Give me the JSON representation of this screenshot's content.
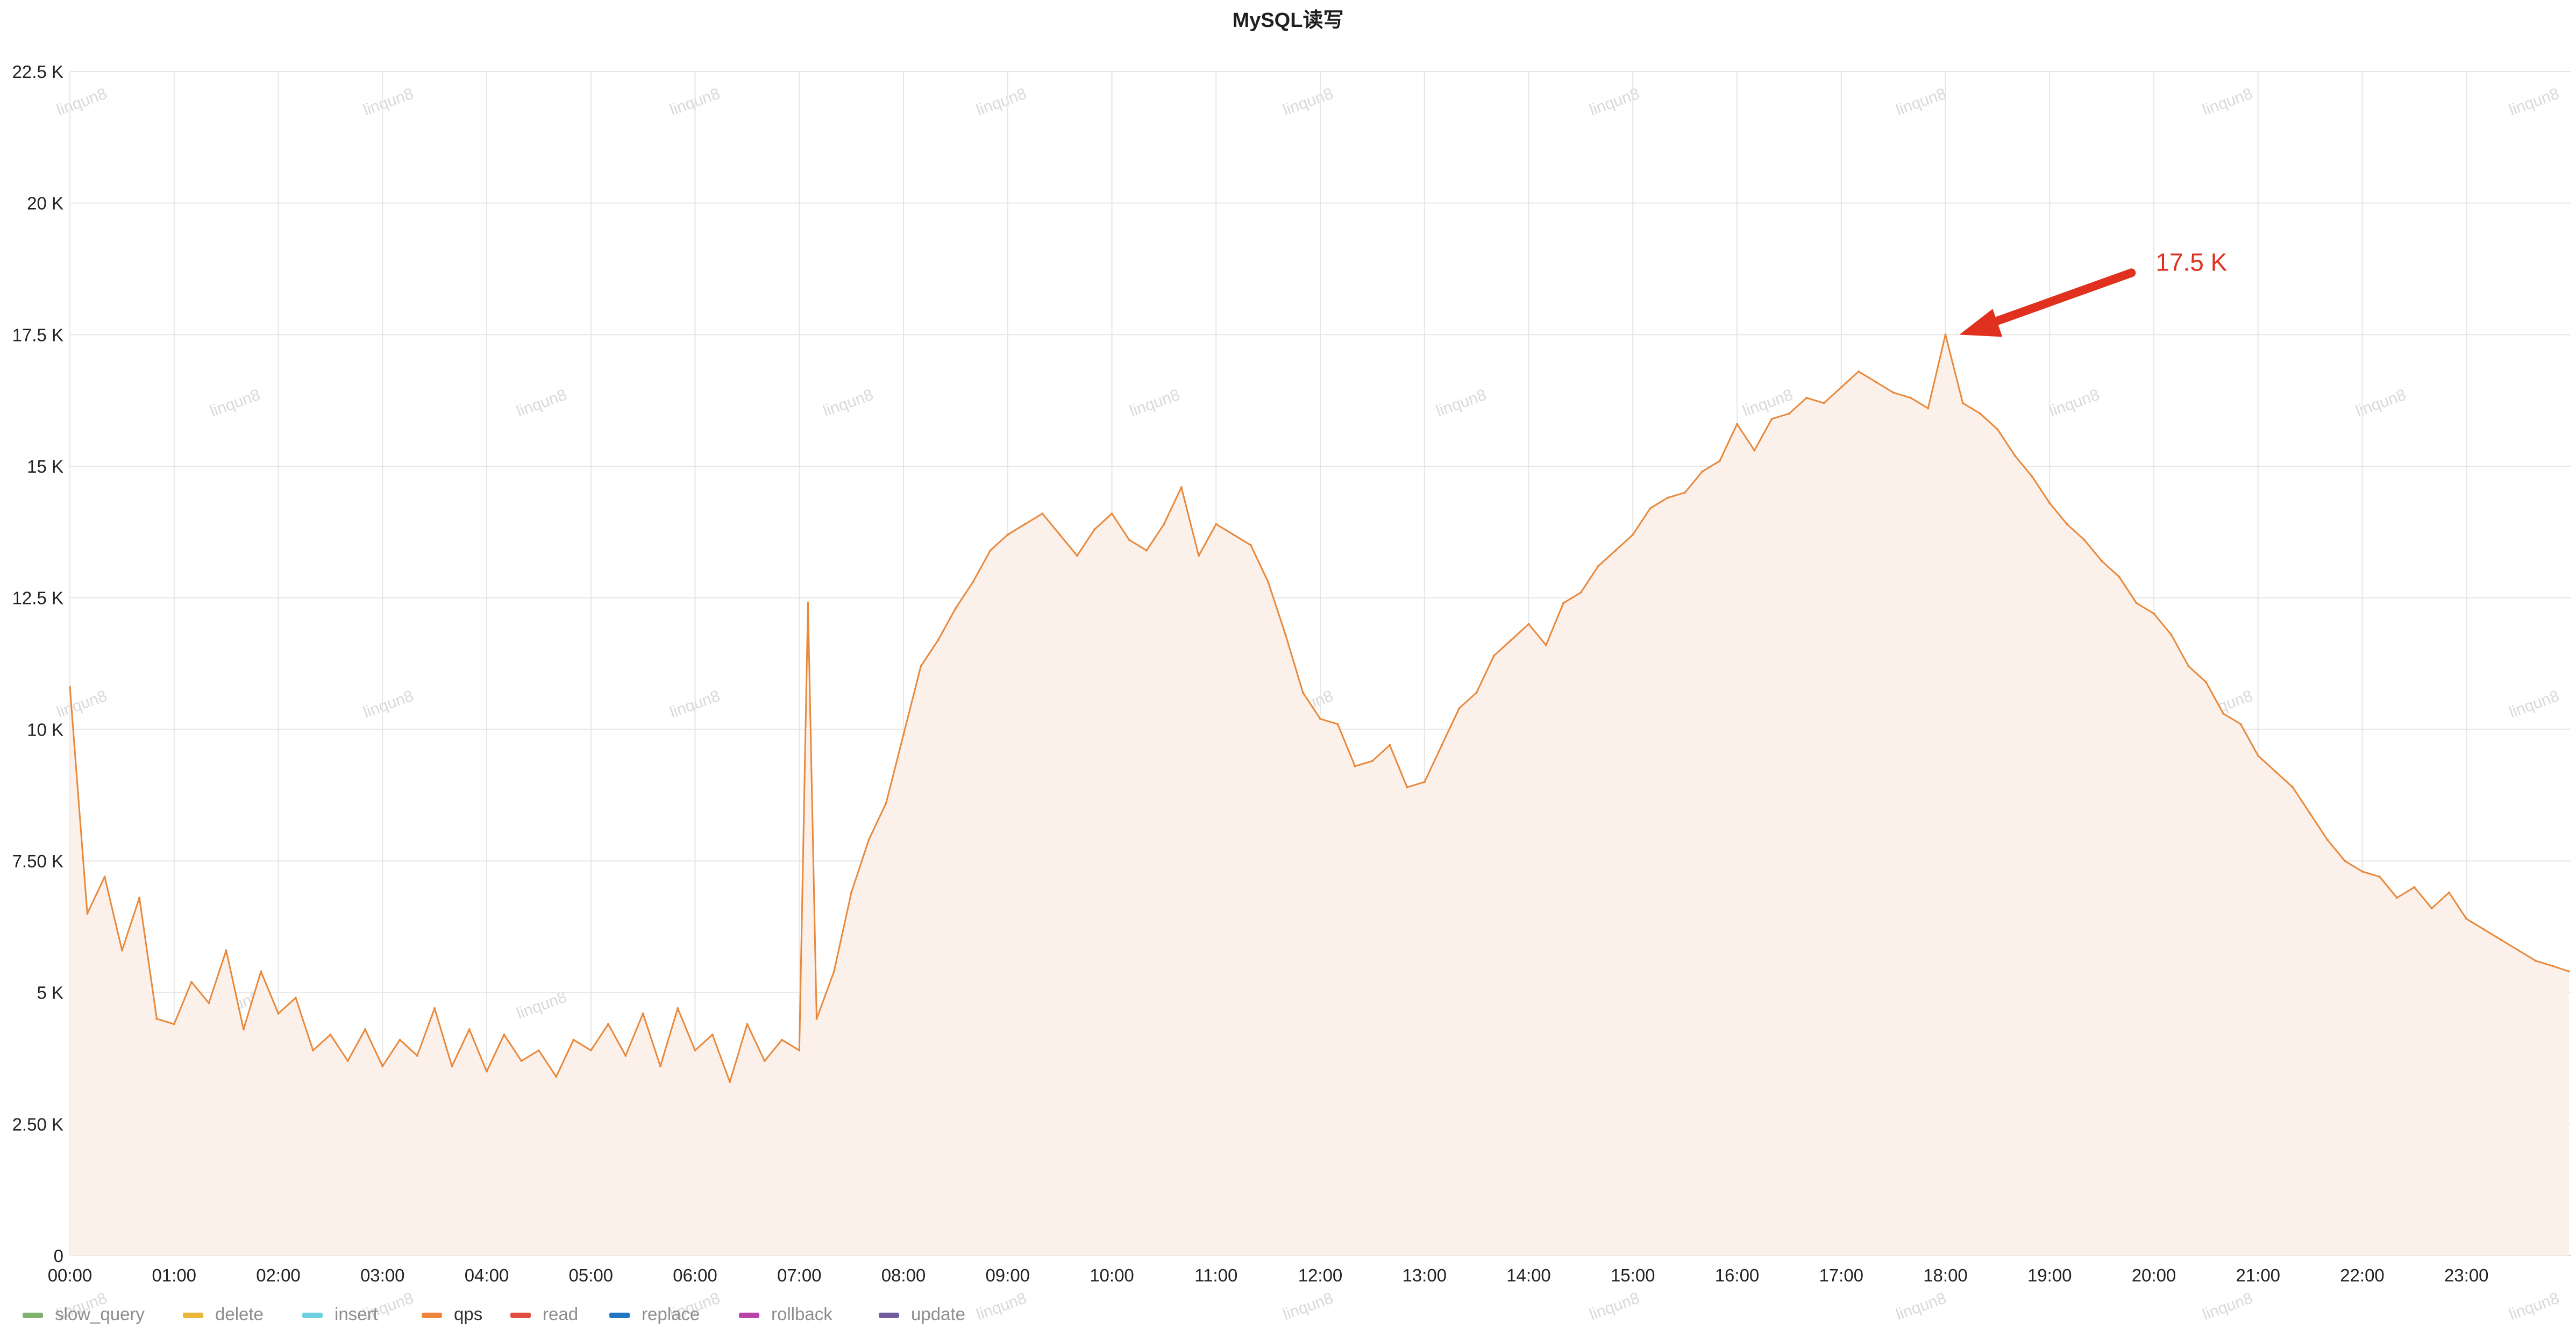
{
  "window": {
    "title": "MySQL读写"
  },
  "colors": {
    "series_line": "#e8893c",
    "series_fill": "#fbf0ea",
    "grid": "#e6e6e6",
    "annotation": "#e0301e"
  },
  "watermark": "linqun8",
  "annotation": {
    "label": "17.5 K",
    "at_time": "18:08",
    "at_value": 17500
  },
  "chart_data": {
    "type": "area",
    "title": "MySQL读写",
    "xlabel": "",
    "ylabel": "",
    "x_ticks": [
      "00:00",
      "01:00",
      "02:00",
      "03:00",
      "04:00",
      "05:00",
      "06:00",
      "07:00",
      "08:00",
      "09:00",
      "10:00",
      "11:00",
      "12:00",
      "13:00",
      "14:00",
      "15:00",
      "16:00",
      "17:00",
      "18:00",
      "19:00",
      "20:00",
      "21:00",
      "22:00",
      "23:00"
    ],
    "y_ticks": [
      "0",
      "2.50 K",
      "5 K",
      "7.50 K",
      "10 K",
      "12.5 K",
      "15 K",
      "17.5 K",
      "20 K",
      "22.5 K"
    ],
    "y_tick_values": [
      0,
      2500,
      5000,
      7500,
      10000,
      12500,
      15000,
      17500,
      20000,
      22500
    ],
    "ylim": [
      0,
      22500
    ],
    "xlim_hours": [
      0,
      24
    ],
    "grid": true,
    "legend_position": "bottom-left",
    "legend": [
      {
        "name": "slow_query",
        "color": "#7eb26d"
      },
      {
        "name": "delete",
        "color": "#eab839"
      },
      {
        "name": "insert",
        "color": "#6ed0e0"
      },
      {
        "name": "qps",
        "color": "#ef843c"
      },
      {
        "name": "read",
        "color": "#e24d42"
      },
      {
        "name": "replace",
        "color": "#1f78c1"
      },
      {
        "name": "rollback",
        "color": "#ba43a9"
      },
      {
        "name": "update",
        "color": "#705da0"
      }
    ],
    "series": [
      {
        "name": "qps",
        "color": "#e8893c",
        "x": [
          "00:00",
          "00:10",
          "00:20",
          "00:30",
          "00:40",
          "00:50",
          "01:00",
          "01:10",
          "01:20",
          "01:30",
          "01:40",
          "01:50",
          "02:00",
          "02:10",
          "02:20",
          "02:30",
          "02:40",
          "02:50",
          "03:00",
          "03:10",
          "03:20",
          "03:30",
          "03:40",
          "03:50",
          "04:00",
          "04:10",
          "04:20",
          "04:30",
          "04:40",
          "04:50",
          "05:00",
          "05:10",
          "05:20",
          "05:30",
          "05:40",
          "05:50",
          "06:00",
          "06:10",
          "06:20",
          "06:30",
          "06:40",
          "06:50",
          "07:00",
          "07:05",
          "07:10",
          "07:20",
          "07:30",
          "07:40",
          "07:50",
          "08:00",
          "08:10",
          "08:20",
          "08:30",
          "08:40",
          "08:50",
          "09:00",
          "09:10",
          "09:20",
          "09:30",
          "09:40",
          "09:50",
          "10:00",
          "10:10",
          "10:20",
          "10:30",
          "10:40",
          "10:50",
          "11:00",
          "11:10",
          "11:20",
          "11:30",
          "11:40",
          "11:50",
          "12:00",
          "12:10",
          "12:20",
          "12:30",
          "12:40",
          "12:50",
          "13:00",
          "13:10",
          "13:20",
          "13:30",
          "13:40",
          "13:50",
          "14:00",
          "14:10",
          "14:20",
          "14:30",
          "14:40",
          "14:50",
          "15:00",
          "15:10",
          "15:20",
          "15:30",
          "15:40",
          "15:50",
          "16:00",
          "16:10",
          "16:20",
          "16:30",
          "16:40",
          "16:50",
          "17:00",
          "17:10",
          "17:20",
          "17:30",
          "17:40",
          "17:50",
          "18:00",
          "18:10",
          "18:20",
          "18:30",
          "18:40",
          "18:50",
          "19:00",
          "19:10",
          "19:20",
          "19:30",
          "19:40",
          "19:50",
          "20:00",
          "20:10",
          "20:20",
          "20:30",
          "20:40",
          "20:50",
          "21:00",
          "21:10",
          "21:20",
          "21:30",
          "21:40",
          "21:50",
          "22:00",
          "22:10",
          "22:20",
          "22:30",
          "22:40",
          "22:50",
          "23:00",
          "23:10",
          "23:20",
          "23:30",
          "23:40",
          "23:50",
          "23:59"
        ],
        "values": [
          10800,
          6500,
          7200,
          5800,
          6800,
          4500,
          4400,
          5200,
          4800,
          5800,
          4300,
          5400,
          4600,
          4900,
          3900,
          4200,
          3700,
          4300,
          3600,
          4100,
          3800,
          4700,
          3600,
          4300,
          3500,
          4200,
          3700,
          3900,
          3400,
          4100,
          3900,
          4400,
          3800,
          4600,
          3600,
          4700,
          3900,
          4200,
          3300,
          4400,
          3700,
          4100,
          3900,
          12400,
          4500,
          5400,
          6900,
          7900,
          8600,
          9900,
          11200,
          11700,
          12300,
          12800,
          13400,
          13700,
          13900,
          14100,
          13700,
          13300,
          13800,
          14100,
          13600,
          13400,
          13900,
          14600,
          13300,
          13900,
          13700,
          13500,
          12800,
          11800,
          10700,
          10200,
          10100,
          9300,
          9400,
          9700,
          8900,
          9000,
          9700,
          10400,
          10700,
          11400,
          11700,
          12000,
          11600,
          12400,
          12600,
          13100,
          13400,
          13700,
          14200,
          14400,
          14500,
          14900,
          15100,
          15800,
          15300,
          15900,
          16000,
          16300,
          16200,
          16500,
          16800,
          16600,
          16400,
          16300,
          16100,
          17500,
          16200,
          16000,
          15700,
          15200,
          14800,
          14300,
          13900,
          13600,
          13200,
          12900,
          12400,
          12200,
          11800,
          11200,
          10900,
          10300,
          10100,
          9500,
          9200,
          8900,
          8400,
          7900,
          7500,
          7300,
          7200,
          6800,
          7000,
          6600,
          6900,
          6400,
          6200,
          6000,
          5800,
          5600,
          5500,
          5400
        ]
      }
    ]
  }
}
